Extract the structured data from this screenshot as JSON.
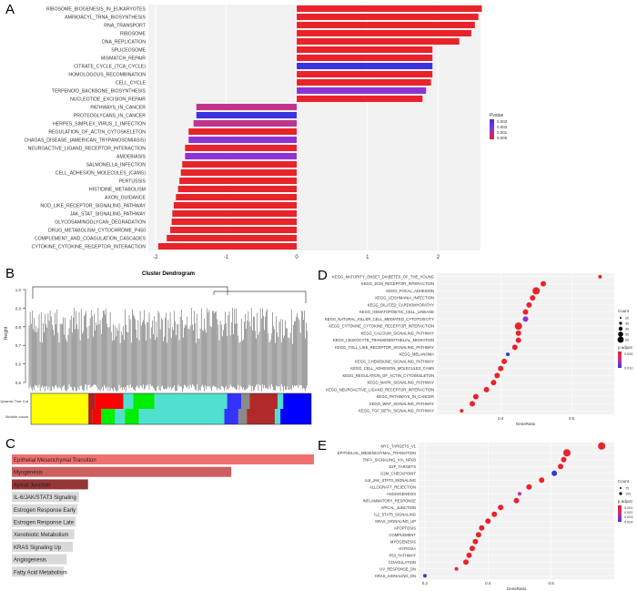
{
  "panel_letters": {
    "a": "A",
    "b": "B",
    "c": "C",
    "d": "D",
    "e": "E"
  },
  "colors": {
    "nes_red": "#e8232a",
    "nes_blue": "#3a33e0",
    "nes_purple": "#8d33d6",
    "nes_magenta": "#c2338e",
    "grid_bg": "#f2f2f2",
    "c_bar_base": "#d9d9d9",
    "dendro_line": "#444444"
  },
  "chart_data": [
    {
      "type": "bar",
      "panel": "A",
      "orientation": "horizontal",
      "xlabel": "NES",
      "xlim": [
        -2.1,
        2.6
      ],
      "xticks": [
        -2,
        -1,
        0,
        1,
        2
      ],
      "legend": {
        "title": "Pvalue",
        "placement": "right",
        "labels": [
          "0.003",
          "0.002",
          "0.001",
          "0.000"
        ]
      },
      "categories": [
        "RIBOSOME_BIOGENESIS_IN_EUKARYOTES",
        "AMINOACYL_TRNA_BIOSYNTHESIS",
        "RNA_TRANSPORT",
        "RIBOSOME",
        "DNA_REPLICATION",
        "SPLICEOSOME",
        "MISMATCH_REPAIR",
        "CITRATE_CYCLE_(TCA_CYCLE)",
        "HOMOLOGOUS_RECOMBINATION",
        "CELL_CYCLE",
        "TERPENOID_BACKBONE_BIOSYNTHESIS",
        "NUCLEOTIDE_EXCISION_REPAIR",
        "PATHWAYS_IN_CANCER",
        "PROTEOGLYCANS_IN_CANCER",
        "HERPES_SIMPLEX_VIRUS_1_INFECTION",
        "REGULATION_OF_ACTIN_CYTOSKELETON",
        "CHAGAS_DISEASE_(AMERICAN_TRYPANOSOMIASIS)",
        "NEUROACTIVE_LIGAND_RECEPTOR_INTERACTION",
        "AMOEBIASIS",
        "SALMONELLA_INFECTION",
        "CELL_ADHESION_MOLECULES_(CAMS)",
        "PERTUSSIS",
        "HISTIDINE_METABOLISM",
        "AXON_GUIDANCE",
        "NOD_LIKE_RECEPTOR_SIGNALING_PATHWAY",
        "JAK_STAT_SIGNALING_PATHWAY",
        "GLYCOSAMINOGLYCAN_DEGRADATION",
        "DRUG_METABOLISM_CYTOCHROME_P450",
        "COMPLEMENT_AND_COAGULATION_CASCADES",
        "CYTOKINE_CYTOKINE_RECEPTOR_INTERACTION"
      ],
      "values": [
        2.62,
        2.57,
        2.52,
        2.47,
        2.3,
        1.92,
        1.92,
        1.92,
        1.92,
        1.9,
        1.83,
        1.78,
        -1.42,
        -1.42,
        -1.46,
        -1.53,
        -1.53,
        -1.58,
        -1.58,
        -1.62,
        -1.64,
        -1.66,
        -1.68,
        -1.71,
        -1.74,
        -1.76,
        -1.77,
        -1.79,
        -1.84,
        -1.96
      ],
      "pvalue_colors": [
        "#e8232a",
        "#e8232a",
        "#e8232a",
        "#e8232a",
        "#e8232a",
        "#e8232a",
        "#e8232a",
        "#3a33e0",
        "#e8232a",
        "#e8232a",
        "#8d33d6",
        "#e8232a",
        "#c2338e",
        "#3a33e0",
        "#c2338e",
        "#e8232a",
        "#8d33d6",
        "#e8232a",
        "#8d33d6",
        "#e8232a",
        "#e8232a",
        "#e8232a",
        "#e8232a",
        "#e8232a",
        "#e8232a",
        "#e8232a",
        "#e8232a",
        "#e8232a",
        "#e8232a",
        "#e8232a"
      ]
    },
    {
      "type": "dendrogram",
      "panel": "B",
      "title": "Cluster Dendrogram",
      "ylabel": "Height",
      "yticks": [
        "1.0",
        "0.9",
        "0.8",
        "0.7",
        "0.6",
        "0.5"
      ],
      "row_labels": [
        "Dynamic Tree Cut",
        "Module colors"
      ],
      "module_strips": {
        "dynamic": [
          [
            "#ffff00",
            0.205
          ],
          [
            "#aa2222",
            0.025
          ],
          [
            "#ff0000",
            0.1
          ],
          [
            "#50e0d0",
            0.035
          ],
          [
            "#00ee00",
            0.075
          ],
          [
            "#50e0d0",
            0.26
          ],
          [
            "#3333ff",
            0.05
          ],
          [
            "#8a8a8a",
            0.03
          ],
          [
            "#b02a2a",
            0.1
          ],
          [
            "#50e0d0",
            0.02
          ],
          [
            "#0000ff",
            0.1
          ]
        ],
        "module": [
          [
            "#ffff00",
            0.205
          ],
          [
            "#aa2222",
            0.015
          ],
          [
            "#ff0000",
            0.03
          ],
          [
            "#00ee00",
            0.05
          ],
          [
            "#50e0d0",
            0.035
          ],
          [
            "#00ee00",
            0.05
          ],
          [
            "#50e0d0",
            0.305
          ],
          [
            "#3333ff",
            0.05
          ],
          [
            "#8a8a8a",
            0.03
          ],
          [
            "#b02a2a",
            0.1
          ],
          [
            "#50e0d0",
            0.02
          ],
          [
            "#0000ff",
            0.11
          ]
        ]
      }
    },
    {
      "type": "bar",
      "panel": "C",
      "orientation": "horizontal",
      "categories": [
        "Epithelial Mesenchymal Transition",
        "Myogenesis",
        "Apical Junction",
        "IL-6/JAK/STAT3 Signaling",
        "Estrogen Response Early",
        "Estrogen Response Late",
        "Xenobiotic Metabolism",
        "KRAS Signaling Up",
        "Angiogenesis",
        "Fatty Acid Metabolism"
      ],
      "values": [
        1.0,
        0.72,
        0.25,
        0.22,
        0.215,
        0.21,
        0.205,
        0.2,
        0.18,
        0.17
      ],
      "colors": [
        "#f07070",
        "#cd5f5f",
        "#963535",
        "#d9d9d9",
        "#d9d9d9",
        "#d9d9d9",
        "#d9d9d9",
        "#d9d9d9",
        "#d9d9d9",
        "#d9d9d9"
      ]
    },
    {
      "type": "scatter",
      "panel": "D",
      "xlabel": "GeneRatio",
      "xticks": [
        0.4,
        0.6
      ],
      "xlim": [
        0.22,
        0.72
      ],
      "categories": [
        "KEGG_MATURITY_ONSET_DIABETES_OF_THE_YOUNG",
        "KEGG_ECM_RECEPTOR_INTERACTION",
        "KEGG_FOCAL_ADHESION",
        "KEGG_LEISHMANIA_INFECTION",
        "KEGG_DILATED_CARDIOMYOPATHY",
        "KEGG_HEMATOPOIETIC_CELL_LINEAGE",
        "KEGG_NATURAL_KILLER_CELL_MEDIATED_CYTOTOXICITY",
        "KEGG_CYTOKINE_CYTOKINE_RECEPTOR_INTERACTION",
        "KEGG_CALCIUM_SIGNALING_PATHWAY",
        "KEGG_LEUKOCYTE_TRANSENDOTHELIAL_MIGRATION",
        "KEGG_TOLL_LIKE_RECEPTOR_SIGNALING_PATHWAY",
        "KEGG_MELANOMA",
        "KEGG_CHEMOKINE_SIGNALING_PATHWAY",
        "KEGG_CELL_ADHESION_MOLECULES_CAMS",
        "KEGG_REGULATION_OF_ACTIN_CYTOSKELETON",
        "KEGG_MAPK_SIGNALING_PATHWAY",
        "KEGG_NEUROACTIVE_LIGAND_RECEPTOR_INTERACTION",
        "KEGG_PATHWAYS_IN_CANCER",
        "KEGG_WNT_SIGNALING_PATHWAY",
        "KEGG_TGF_BETA_SIGNALING_PATHWAY"
      ],
      "x": [
        0.68,
        0.52,
        0.5,
        0.49,
        0.48,
        0.47,
        0.47,
        0.45,
        0.45,
        0.45,
        0.44,
        0.42,
        0.41,
        0.4,
        0.39,
        0.38,
        0.36,
        0.33,
        0.32,
        0.29
      ],
      "sizes": [
        2,
        3,
        4,
        3,
        3,
        3,
        3,
        4,
        3,
        3,
        3,
        2,
        3,
        3,
        3,
        3,
        3,
        3,
        3,
        2
      ],
      "colors": [
        "#e8232a",
        "#e8232a",
        "#e8232a",
        "#e8232a",
        "#e8232a",
        "#e8232a",
        "#8d33d6",
        "#e8232a",
        "#e8232a",
        "#e8232a",
        "#e8232a",
        "#3a33e0",
        "#e8232a",
        "#e8232a",
        "#e8232a",
        "#e8232a",
        "#e8232a",
        "#e8232a",
        "#e8232a",
        "#e8232a"
      ],
      "size_legend": {
        "title": "Count",
        "labels": [
          "20",
          "30",
          "40",
          "50",
          "60"
        ]
      },
      "color_legend": {
        "title": "p.adjust",
        "labels": [
          "0.005",
          "0.010"
        ]
      }
    },
    {
      "type": "scatter",
      "panel": "E",
      "xlabel": "GeneRatio",
      "xticks": [
        0.2,
        0.4,
        0.6
      ],
      "xlim": [
        0.18,
        0.8
      ],
      "categories": [
        "MYC_TARGETS_V1",
        "EPITHELIAL_MESENCHYMAL_TRANSITION",
        "TNFA_SIGNALING_VIA_NFKB",
        "E2F_TARGETS",
        "G2M_CHECKPOINT",
        "IL6_JAK_STAT3_SIGNALING",
        "ALLOGRAFT_REJECTION",
        "ANGIOGENESIS",
        "INFLAMMATORY_RESPONSE",
        "APICAL_JUNCTION",
        "IL2_STAT5_SIGNALING",
        "KRAS_SIGNALING_UP",
        "APOPTOSIS",
        "COMPLEMENT",
        "MYOGENESIS",
        "HYPOXIA",
        "P53_PATHWAY",
        "COAGULATION",
        "UV_RESPONSE_DN",
        "KRAS_SIGNALING_DN"
      ],
      "x": [
        0.76,
        0.65,
        0.64,
        0.63,
        0.61,
        0.57,
        0.53,
        0.5,
        0.49,
        0.44,
        0.42,
        0.4,
        0.38,
        0.37,
        0.36,
        0.35,
        0.34,
        0.33,
        0.3,
        0.2
      ],
      "sizes": [
        4,
        4,
        3,
        3,
        3,
        3,
        3,
        2,
        3,
        3,
        3,
        3,
        3,
        3,
        3,
        3,
        3,
        3,
        2,
        2
      ],
      "colors": [
        "#e8232a",
        "#e8232a",
        "#e8232a",
        "#e8232a",
        "#3a33e0",
        "#e8232a",
        "#e8232a",
        "#c2338e",
        "#e8232a",
        "#e8232a",
        "#e8232a",
        "#e8232a",
        "#e8232a",
        "#e8232a",
        "#e8232a",
        "#e8232a",
        "#e8232a",
        "#e8232a",
        "#e8232a",
        "#3a33e0"
      ],
      "size_legend": {
        "title": "Count",
        "labels": [
          "75",
          "100"
        ]
      },
      "color_legend": {
        "title": "p.adjust",
        "labels": [
          "0.001",
          "0.002",
          "0.003",
          "0.004"
        ]
      }
    }
  ]
}
